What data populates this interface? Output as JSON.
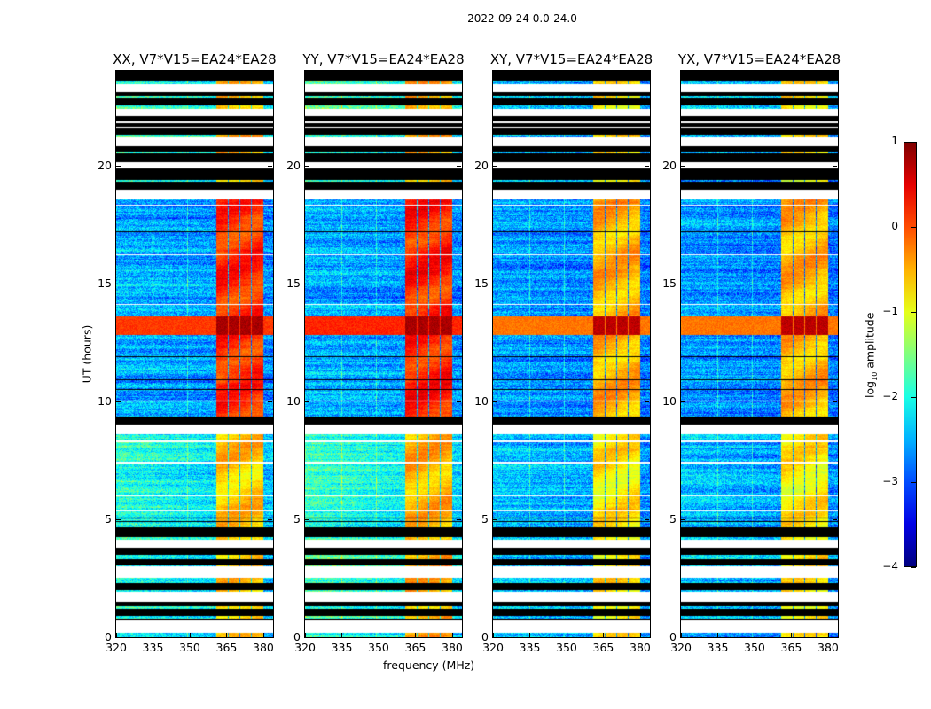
{
  "suptitle": "2022-09-24 0.0-24.0",
  "chart_data": {
    "type": "heatmap",
    "xlabel": "frequency (MHz)",
    "ylabel": "UT (hours)",
    "xlim": [
      320,
      384
    ],
    "ylim": [
      0,
      24
    ],
    "xticks": [
      "320",
      "335",
      "350",
      "365",
      "380"
    ],
    "xtick_values": [
      320,
      335,
      350,
      365,
      380
    ],
    "yticks": [
      "0",
      "5",
      "10",
      "15",
      "20"
    ],
    "ytick_values": [
      0,
      5,
      10,
      15,
      20
    ],
    "colormap": "jet",
    "colorbar": {
      "label_main": "log",
      "label_sub": "10",
      "label_rest": " amplitude",
      "range": [
        -4,
        1
      ],
      "ticks": [
        "1",
        "0",
        "−1",
        "−2",
        "−3",
        "−4"
      ],
      "tick_values": [
        1,
        0,
        -1,
        -2,
        -3,
        -4
      ]
    },
    "time_segments": [
      [
        0.0,
        0.2,
        "data"
      ],
      [
        0.2,
        0.7,
        "blank"
      ],
      [
        0.7,
        0.8,
        "flagged"
      ],
      [
        0.8,
        0.9,
        "data"
      ],
      [
        0.9,
        1.2,
        "flagged"
      ],
      [
        1.2,
        1.3,
        "data"
      ],
      [
        1.3,
        1.5,
        "flagged"
      ],
      [
        1.5,
        1.9,
        "blank"
      ],
      [
        1.9,
        2.0,
        "data"
      ],
      [
        2.0,
        2.3,
        "flagged"
      ],
      [
        2.3,
        2.5,
        "data"
      ],
      [
        2.5,
        3.0,
        "blank"
      ],
      [
        3.0,
        3.05,
        "data"
      ],
      [
        3.05,
        3.3,
        "flagged"
      ],
      [
        3.3,
        3.5,
        "data"
      ],
      [
        3.5,
        3.8,
        "flagged"
      ],
      [
        3.8,
        4.15,
        "blank"
      ],
      [
        4.15,
        4.25,
        "data"
      ],
      [
        4.25,
        4.65,
        "flagged"
      ],
      [
        4.65,
        8.6,
        "data"
      ],
      [
        8.6,
        9.0,
        "blank"
      ],
      [
        9.0,
        9.35,
        "flagged"
      ],
      [
        9.35,
        18.55,
        "data"
      ],
      [
        18.55,
        18.95,
        "blank"
      ],
      [
        18.95,
        19.3,
        "flagged"
      ],
      [
        19.3,
        19.38,
        "data"
      ],
      [
        19.38,
        19.85,
        "flagged"
      ],
      [
        19.85,
        20.15,
        "blank"
      ],
      [
        20.15,
        20.5,
        "flagged"
      ],
      [
        20.5,
        20.58,
        "data"
      ],
      [
        20.58,
        20.8,
        "flagged"
      ],
      [
        20.8,
        21.2,
        "blank"
      ],
      [
        21.2,
        21.3,
        "data"
      ],
      [
        21.3,
        21.6,
        "flagged"
      ],
      [
        21.6,
        21.65,
        "blank"
      ],
      [
        21.65,
        21.8,
        "flagged"
      ],
      [
        21.8,
        21.85,
        "blank"
      ],
      [
        21.85,
        22.1,
        "flagged"
      ],
      [
        22.1,
        22.4,
        "blank"
      ],
      [
        22.4,
        22.55,
        "data"
      ],
      [
        22.55,
        22.85,
        "flagged"
      ],
      [
        22.85,
        22.95,
        "data"
      ],
      [
        22.95,
        23.1,
        "flagged"
      ],
      [
        23.1,
        23.45,
        "blank"
      ],
      [
        23.45,
        23.6,
        "data"
      ],
      [
        23.6,
        24.0,
        "flagged"
      ]
    ],
    "blank_lines_hours": [
      5.35,
      6.0,
      7.4,
      8.3,
      10.0,
      14.1,
      16.2,
      18.3
    ],
    "flagged_lines_hours": [
      4.9,
      5.05,
      10.5,
      10.9,
      11.9,
      17.2
    ],
    "rfi_band_mhz": [
      360.5,
      380.0
    ],
    "rfi_channel_gaps_mhz": [
      365.5,
      370.2,
      374.9
    ],
    "broadband_burst_hours": [
      12.8,
      13.6
    ],
    "panels": [
      {
        "title": "XX, V7*V15=EA24*EA28",
        "early": {
          "bg_left": -1.9,
          "bg_right": -2.4,
          "rfi": -0.6
        },
        "late": {
          "bg_left": -2.5,
          "bg_right": -2.7,
          "rfi": 0.15
        },
        "burst": {
          "bg": 0.1,
          "rfi": 0.8
        }
      },
      {
        "title": "YY, V7*V15=EA24*EA28",
        "early": {
          "bg_left": -1.8,
          "bg_right": -2.3,
          "rfi": -0.5
        },
        "late": {
          "bg_left": -2.5,
          "bg_right": -2.7,
          "rfi": 0.2
        },
        "burst": {
          "bg": 0.2,
          "rfi": 0.8
        }
      },
      {
        "title": "XY, V7*V15=EA24*EA28",
        "early": {
          "bg_left": -2.4,
          "bg_right": -2.7,
          "rfi": -0.8
        },
        "late": {
          "bg_left": -2.6,
          "bg_right": -2.8,
          "rfi": -0.5
        },
        "burst": {
          "bg": -0.2,
          "rfi": 0.7
        }
      },
      {
        "title": "YX, V7*V15=EA24*EA28",
        "early": {
          "bg_left": -2.4,
          "bg_right": -2.7,
          "rfi": -0.8
        },
        "late": {
          "bg_left": -2.6,
          "bg_right": -2.8,
          "rfi": -0.5
        },
        "burst": {
          "bg": -0.2,
          "rfi": 0.7
        }
      }
    ]
  }
}
